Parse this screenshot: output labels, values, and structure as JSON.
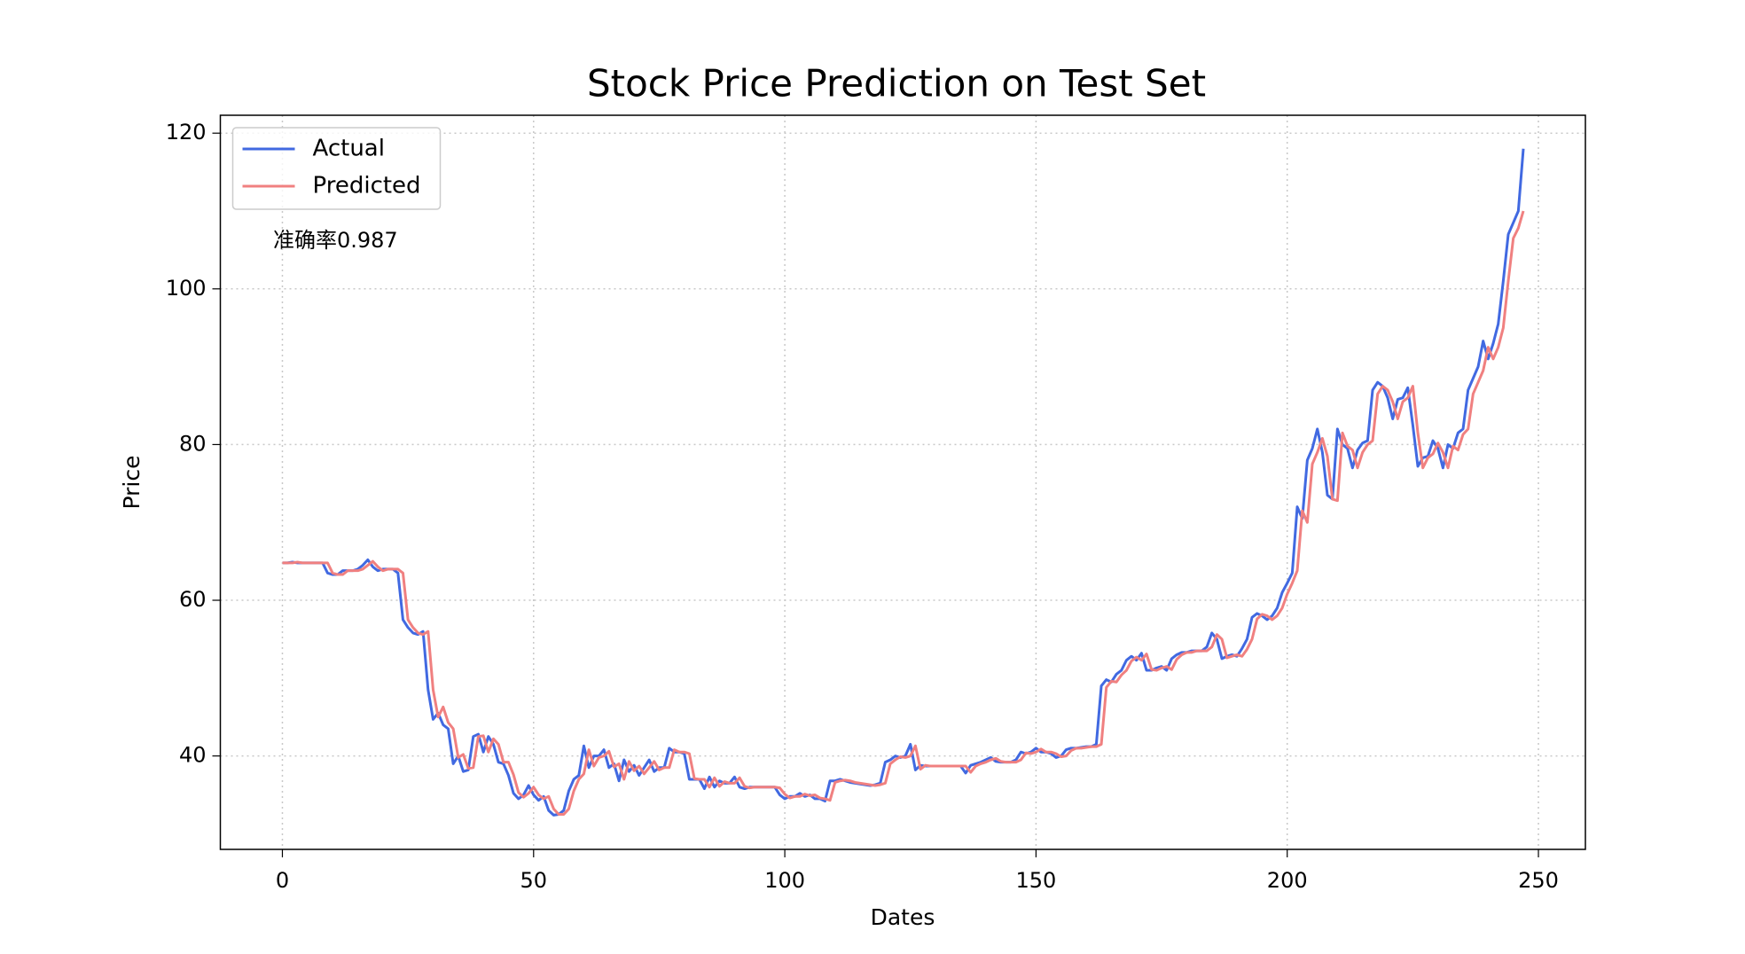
{
  "chart_data": {
    "type": "line",
    "title": "Stock Price Prediction on Test Set",
    "xlabel": "Dates",
    "ylabel": "Price",
    "annotation": "准确率0.987",
    "legend": "upper left",
    "grid": true,
    "xlim": [
      -12.35,
      259.35
    ],
    "xticks": [
      0,
      50,
      100,
      150,
      200,
      250
    ],
    "ylim": [
      28.0,
      122.3
    ],
    "yticks": [
      40,
      60,
      80,
      100,
      120
    ],
    "x": [
      0,
      1,
      2,
      3,
      4,
      5,
      6,
      7,
      8,
      9,
      10,
      11,
      12,
      13,
      14,
      15,
      16,
      17,
      18,
      19,
      20,
      21,
      22,
      23,
      24,
      25,
      26,
      27,
      28,
      29,
      30,
      31,
      32,
      33,
      34,
      35,
      36,
      37,
      38,
      39,
      40,
      41,
      42,
      43,
      44,
      45,
      46,
      47,
      48,
      49,
      50,
      51,
      52,
      53,
      54,
      55,
      56,
      57,
      58,
      59,
      60,
      61,
      62,
      63,
      64,
      65,
      66,
      67,
      68,
      69,
      70,
      71,
      72,
      73,
      74,
      75,
      76,
      77,
      78,
      79,
      80,
      81,
      82,
      83,
      84,
      85,
      86,
      87,
      88,
      89,
      90,
      91,
      92,
      93,
      94,
      95,
      96,
      97,
      98,
      99,
      100,
      101,
      102,
      103,
      104,
      105,
      106,
      107,
      108,
      109,
      110,
      111,
      112,
      113,
      114,
      115,
      116,
      117,
      118,
      119,
      120,
      121,
      122,
      123,
      124,
      125,
      126,
      127,
      128,
      129,
      130,
      131,
      132,
      133,
      134,
      135,
      136,
      137,
      138,
      139,
      140,
      141,
      142,
      143,
      144,
      145,
      146,
      147,
      148,
      149,
      150,
      151,
      152,
      153,
      154,
      155,
      156,
      157,
      158,
      159,
      160,
      161,
      162,
      163,
      164,
      165,
      166,
      167,
      168,
      169,
      170,
      171,
      172,
      173,
      174,
      175,
      176,
      177,
      178,
      179,
      180,
      181,
      182,
      183,
      184,
      185,
      186,
      187,
      188,
      189,
      190,
      191,
      192,
      193,
      194,
      195,
      196,
      197,
      198,
      199,
      200,
      201,
      202,
      203,
      204,
      205,
      206,
      207,
      208,
      209,
      210,
      211,
      212,
      213,
      214,
      215,
      216,
      217,
      218,
      219,
      220,
      221,
      222,
      223,
      224,
      225,
      226,
      227,
      228,
      229,
      230,
      231,
      232,
      233,
      234,
      235,
      236,
      237,
      238,
      239,
      240,
      241,
      242,
      243,
      244,
      245,
      246,
      247
    ],
    "series": [
      {
        "name": "Actual",
        "color": "#4169e1",
        "values": [
          64.8,
          64.8,
          64.9,
          64.8,
          64.8,
          64.8,
          64.8,
          64.8,
          64.8,
          63.5,
          63.3,
          63.3,
          63.8,
          63.8,
          63.8,
          64.0,
          64.5,
          65.2,
          64.3,
          63.8,
          64.0,
          64.0,
          64.0,
          63.5,
          57.5,
          56.5,
          55.8,
          55.6,
          56.0,
          48.5,
          44.7,
          45.5,
          44.0,
          43.5,
          39.0,
          40.0,
          38.0,
          38.2,
          42.5,
          42.8,
          40.5,
          42.5,
          41.5,
          39.2,
          39.0,
          37.5,
          35.2,
          34.5,
          35.0,
          36.2,
          35.0,
          34.3,
          34.8,
          33.0,
          32.4,
          32.5,
          33.0,
          35.5,
          37.0,
          37.5,
          41.3,
          38.5,
          40.0,
          40.0,
          40.8,
          38.5,
          39.0,
          36.8,
          39.5,
          38.0,
          38.8,
          37.5,
          38.5,
          39.5,
          38.0,
          38.5,
          38.5,
          41.0,
          40.5,
          40.5,
          40.3,
          37.0,
          37.0,
          37.0,
          35.8,
          37.3,
          36.0,
          36.8,
          36.5,
          36.5,
          37.3,
          36.0,
          35.8,
          36.0,
          36.0,
          36.0,
          36.0,
          36.0,
          36.0,
          35.0,
          34.5,
          34.8,
          34.8,
          35.2,
          34.8,
          35.0,
          34.5,
          34.5,
          34.2,
          36.8,
          36.8,
          37.0,
          36.8,
          36.6,
          36.5,
          36.4,
          36.3,
          36.2,
          36.3,
          36.5,
          39.2,
          39.5,
          40.0,
          39.8,
          40.0,
          41.5,
          38.2,
          38.8,
          38.7,
          38.7,
          38.7,
          38.7,
          38.7,
          38.7,
          38.7,
          38.7,
          37.8,
          38.8,
          39.0,
          39.2,
          39.5,
          39.8,
          39.3,
          39.2,
          39.2,
          39.2,
          39.5,
          40.5,
          40.3,
          40.5,
          41.0,
          40.5,
          40.5,
          40.3,
          39.8,
          40.0,
          40.8,
          41.0,
          41.0,
          41.1,
          41.2,
          41.2,
          41.5,
          49.0,
          49.8,
          49.5,
          50.5,
          51.0,
          52.3,
          52.8,
          52.3,
          53.2,
          51.0,
          51.0,
          51.3,
          51.5,
          51.0,
          52.5,
          53.0,
          53.3,
          53.3,
          53.5,
          53.5,
          53.5,
          54.0,
          55.8,
          55.0,
          52.5,
          52.8,
          53.0,
          52.8,
          53.8,
          55.0,
          57.8,
          58.3,
          58.0,
          57.5,
          58.0,
          59.0,
          61.0,
          62.2,
          63.5,
          72.0,
          70.5,
          78.0,
          79.5,
          82.0,
          79.0,
          73.5,
          73.0,
          82.0,
          80.0,
          79.5,
          77.0,
          79.3,
          80.2,
          80.5,
          87.0,
          88.0,
          87.5,
          86.0,
          83.3,
          85.8,
          86.0,
          87.3,
          82.5,
          77.2,
          78.3,
          78.5,
          80.5,
          79.5,
          77.0,
          80.0,
          79.5,
          81.5,
          82.0,
          87.0,
          88.5,
          90.0,
          93.3,
          91.0,
          93.0,
          95.5,
          101.0,
          107.0,
          108.5,
          110.0,
          118.0
        ]
      },
      {
        "name": "Predicted",
        "color": "#f08080",
        "values": [
          64.8,
          64.8,
          64.8,
          64.9,
          64.8,
          64.8,
          64.8,
          64.8,
          64.8,
          64.8,
          63.5,
          63.3,
          63.3,
          63.8,
          63.8,
          63.8,
          64.0,
          64.5,
          65.0,
          64.3,
          63.8,
          64.0,
          64.0,
          64.0,
          63.5,
          57.5,
          56.5,
          55.8,
          55.6,
          56.0,
          48.5,
          45.0,
          46.3,
          44.3,
          43.5,
          39.8,
          40.2,
          38.4,
          38.5,
          42.5,
          42.6,
          40.5,
          42.2,
          41.5,
          39.2,
          39.2,
          37.6,
          35.3,
          34.7,
          35.2,
          36.0,
          35.0,
          34.5,
          34.8,
          33.2,
          32.5,
          32.5,
          33.2,
          35.5,
          37.0,
          37.7,
          40.8,
          38.7,
          39.8,
          40.0,
          40.6,
          38.6,
          39.0,
          37.0,
          39.3,
          38.1,
          38.7,
          37.7,
          38.5,
          39.3,
          38.2,
          38.5,
          38.5,
          40.8,
          40.5,
          40.5,
          40.3,
          37.1,
          37.0,
          37.0,
          36.0,
          37.2,
          36.1,
          36.7,
          36.5,
          36.5,
          37.2,
          36.1,
          35.9,
          36.0,
          36.0,
          36.0,
          36.0,
          36.0,
          35.9,
          35.1,
          34.6,
          34.8,
          34.8,
          35.1,
          34.9,
          35.0,
          34.6,
          34.5,
          34.3,
          36.6,
          36.8,
          36.9,
          36.8,
          36.6,
          36.5,
          36.4,
          36.3,
          36.2,
          36.3,
          36.5,
          39.0,
          39.5,
          39.9,
          39.8,
          40.0,
          41.3,
          38.3,
          38.8,
          38.7,
          38.7,
          38.7,
          38.7,
          38.7,
          38.7,
          38.7,
          38.7,
          37.9,
          38.7,
          39.0,
          39.2,
          39.5,
          39.7,
          39.3,
          39.2,
          39.2,
          39.2,
          39.5,
          40.4,
          40.3,
          40.5,
          40.9,
          40.5,
          40.5,
          40.3,
          39.9,
          40.0,
          40.7,
          41.0,
          41.0,
          41.1,
          41.2,
          41.2,
          41.5,
          48.8,
          49.6,
          49.5,
          50.4,
          51.0,
          52.2,
          52.7,
          52.3,
          53.1,
          51.1,
          51.0,
          51.3,
          51.5,
          51.1,
          52.4,
          53.0,
          53.3,
          53.3,
          53.5,
          53.5,
          53.5,
          54.0,
          55.6,
          55.0,
          52.6,
          52.8,
          53.0,
          52.8,
          53.7,
          55.0,
          57.6,
          58.2,
          58.0,
          57.5,
          58.0,
          59.0,
          60.8,
          62.2,
          63.8,
          71.5,
          70.0,
          77.5,
          79.0,
          80.8,
          78.5,
          73.0,
          72.8,
          81.5,
          79.8,
          79.3,
          77.0,
          79.0,
          80.0,
          80.5,
          86.5,
          87.5,
          87.0,
          85.5,
          83.3,
          85.5,
          86.0,
          87.5,
          81.5,
          77.0,
          78.3,
          78.8,
          80.2,
          79.0,
          77.0,
          79.8,
          79.3,
          81.3,
          82.0,
          86.5,
          88.0,
          89.5,
          92.5,
          91.0,
          92.5,
          95.0,
          101.0,
          106.5,
          107.8,
          110.0
        ]
      }
    ]
  }
}
